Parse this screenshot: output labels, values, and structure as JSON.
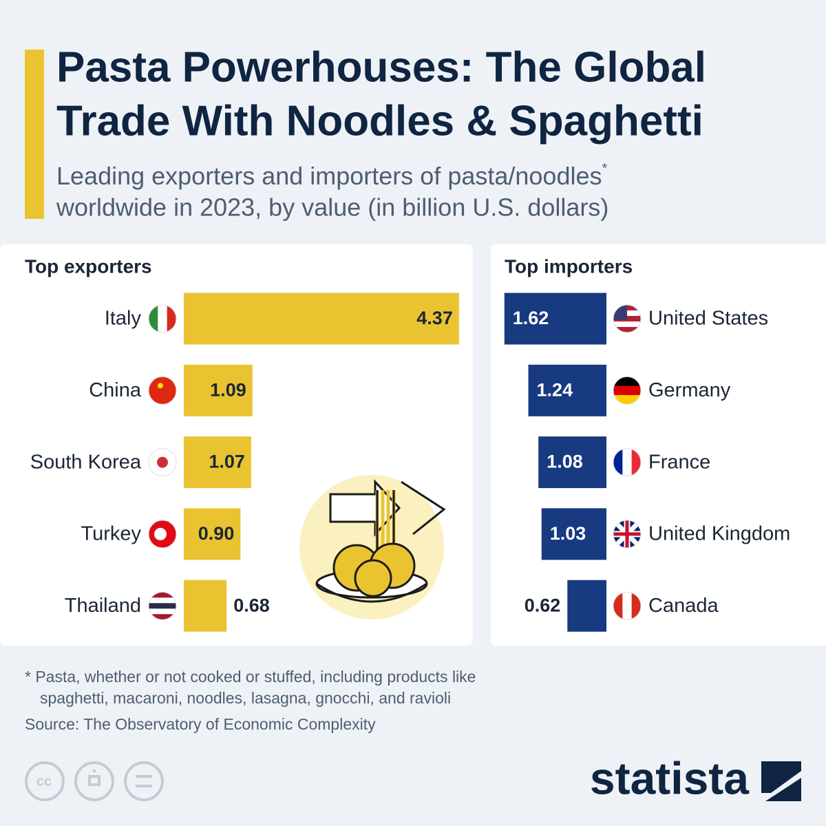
{
  "title": [
    "Pasta Powerhouses: The Global",
    "Trade With Noodles & Spaghetti"
  ],
  "subtitle": [
    "Leading exporters and importers of pasta/noodles",
    "*",
    "worldwide in 2023, by value (in billion U.S. dollars)"
  ],
  "chart_data": [
    {
      "type": "bar",
      "title": "Top exporters",
      "color": "#e9c430",
      "categories": [
        "Italy",
        "China",
        "South Korea",
        "Turkey",
        "Thailand"
      ],
      "values": [
        4.37,
        1.09,
        1.07,
        0.9,
        0.68
      ],
      "value_labels": [
        "4.37",
        "1.09",
        "1.07",
        "0.90",
        "0.68"
      ]
    },
    {
      "type": "bar",
      "title": "Top importers",
      "color": "#173a80",
      "categories": [
        "United States",
        "Germany",
        "France",
        "United Kingdom",
        "Canada"
      ],
      "values": [
        1.62,
        1.24,
        1.08,
        1.03,
        0.62
      ],
      "value_labels": [
        "1.62",
        "1.24",
        "1.08",
        "1.03",
        "0.62"
      ]
    }
  ],
  "footnote": [
    "* Pasta, whether or not cooked or stuffed, including products like",
    "spaghetti, macaroni, noodles, lasagna, gnocchi, and ravioli"
  ],
  "source": "Source: The Observatory of Economic Complexity",
  "logo": "statista"
}
